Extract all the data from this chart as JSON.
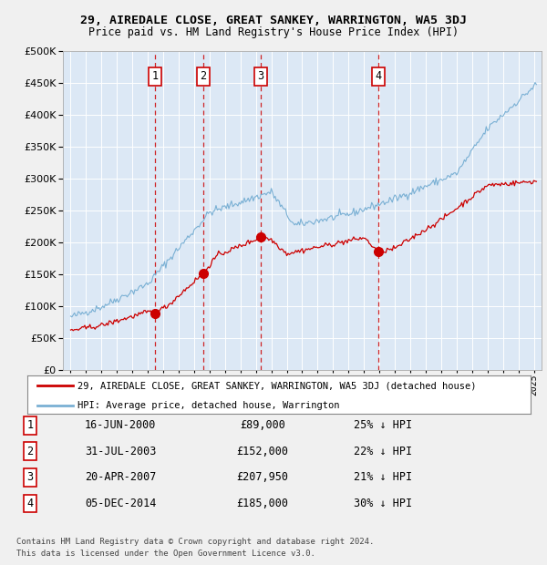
{
  "title": "29, AIREDALE CLOSE, GREAT SANKEY, WARRINGTON, WA5 3DJ",
  "subtitle": "Price paid vs. HM Land Registry's House Price Index (HPI)",
  "red_label": "29, AIREDALE CLOSE, GREAT SANKEY, WARRINGTON, WA5 3DJ (detached house)",
  "blue_label": "HPI: Average price, detached house, Warrington",
  "transactions": [
    {
      "num": 1,
      "date": "16-JUN-2000",
      "price": "£89,000",
      "pct": "25% ↓ HPI",
      "year": 2000.46,
      "price_val": 89000
    },
    {
      "num": 2,
      "date": "31-JUL-2003",
      "price": "£152,000",
      "pct": "22% ↓ HPI",
      "year": 2003.58,
      "price_val": 152000
    },
    {
      "num": 3,
      "date": "20-APR-2007",
      "price": "£207,950",
      "pct": "21% ↓ HPI",
      "year": 2007.3,
      "price_val": 207950
    },
    {
      "num": 4,
      "date": "05-DEC-2014",
      "price": "£185,000",
      "pct": "30% ↓ HPI",
      "year": 2014.92,
      "price_val": 185000
    }
  ],
  "footer": "Contains HM Land Registry data © Crown copyright and database right 2024.\nThis data is licensed under the Open Government Licence v3.0.",
  "fig_bg": "#f0f0f0",
  "plot_bg": "#dce8f5",
  "red_color": "#cc0000",
  "blue_color": "#7ab0d4",
  "shading_color": "#dce8f5",
  "xlim": [
    1994.5,
    2025.5
  ],
  "ylim": [
    0,
    500000
  ],
  "yticks": [
    0,
    50000,
    100000,
    150000,
    200000,
    250000,
    300000,
    350000,
    400000,
    450000,
    500000
  ]
}
